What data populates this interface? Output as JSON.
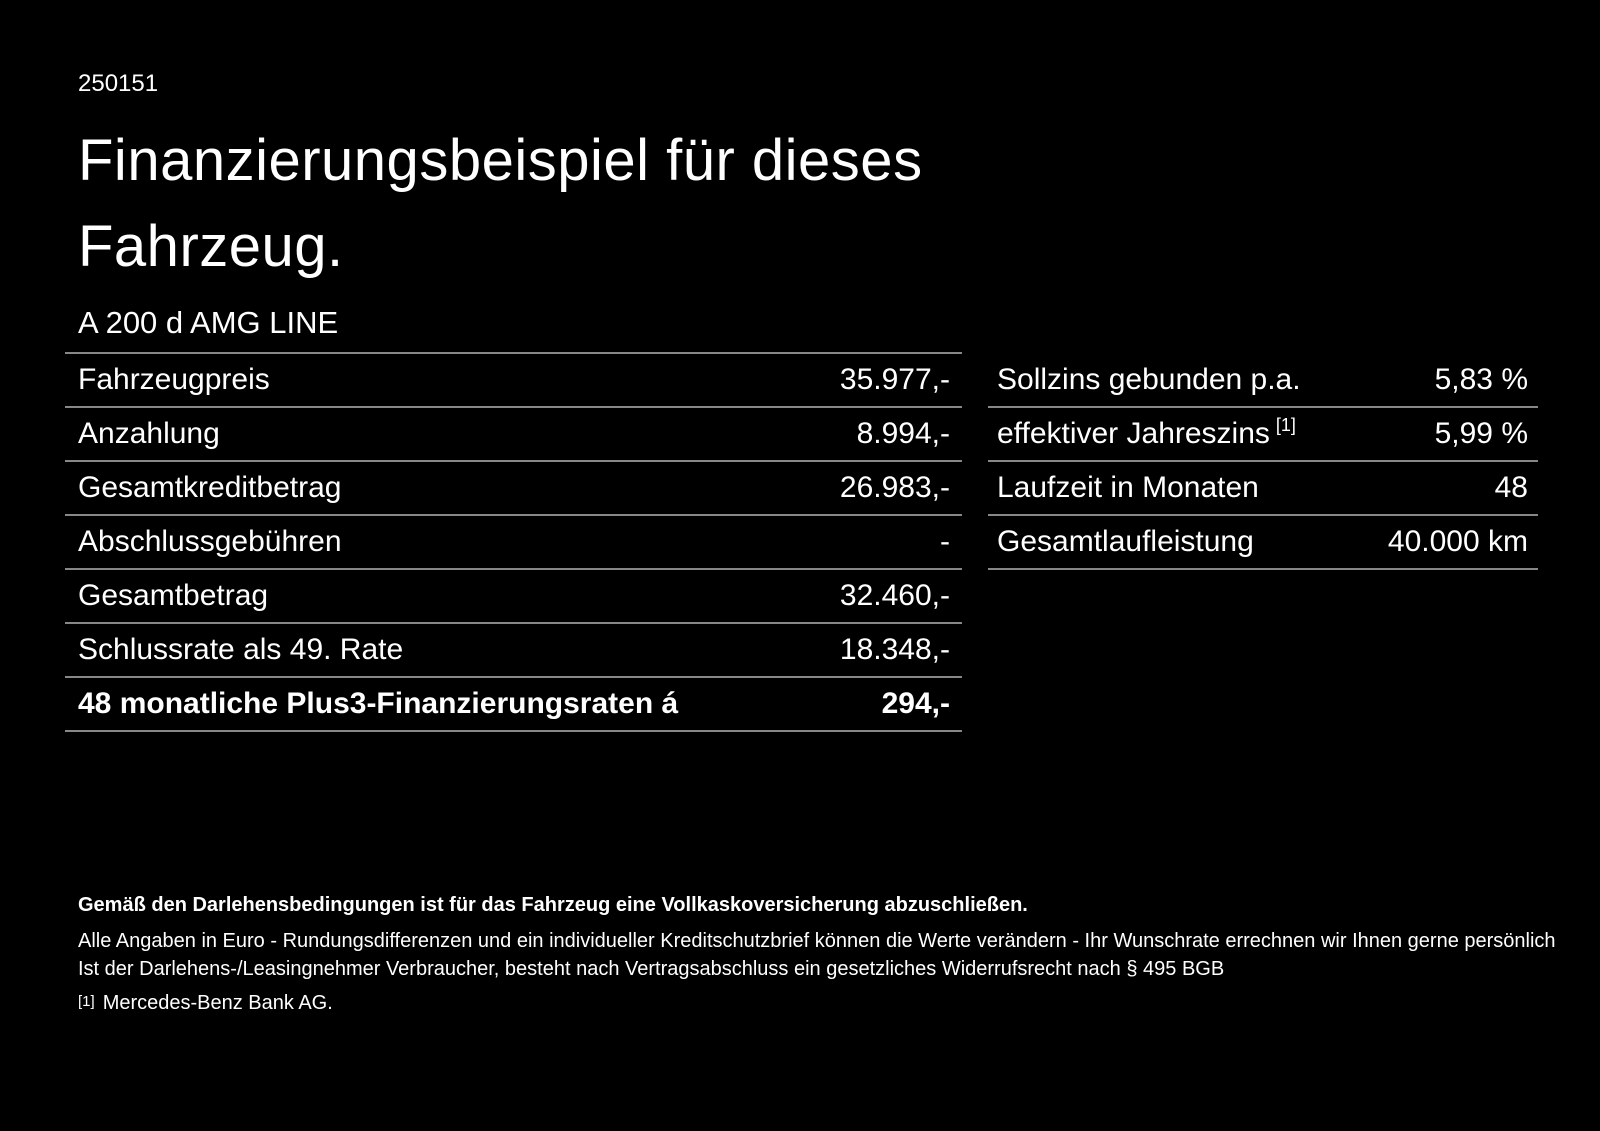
{
  "page": {
    "doc_number": "250151",
    "title_line1": "Finanzierungsbeispiel für dieses",
    "title_line2": "Fahrzeug.",
    "model": "A 200 d AMG LINE"
  },
  "finance_table": {
    "rows": [
      {
        "label": "Fahrzeugpreis",
        "value": "35.977,-"
      },
      {
        "label": "Anzahlung",
        "value": "8.994,-"
      },
      {
        "label": "Gesamtkreditbetrag",
        "value": "26.983,-"
      },
      {
        "label": "Abschlussgebühren",
        "value": "-"
      },
      {
        "label": "Gesamtbetrag",
        "value": "32.460,-"
      },
      {
        "label": "Schlussrate als 49. Rate",
        "value": "18.348,-"
      }
    ],
    "highlight_row": {
      "label": "48 monatliche Plus3-Finanzierungsraten á",
      "value": "294,-"
    }
  },
  "terms_table": {
    "rows": [
      {
        "label": "Sollzins gebunden p.a.",
        "sup": "",
        "value": "5,83 %"
      },
      {
        "label": "effektiver Jahreszins",
        "sup": "[1]",
        "value": "5,99 %"
      },
      {
        "label": "Laufzeit in Monaten",
        "sup": "",
        "value": "48"
      },
      {
        "label": "Gesamtlaufleistung",
        "sup": "",
        "value": "40.000 km"
      }
    ]
  },
  "footer": {
    "bold_note": "Gemäß den Darlehensbedingungen ist für das Fahrzeug eine Vollkaskoversicherung abzuschließen.",
    "note_line1": "Alle Angaben in Euro - Rundungsdifferenzen und ein individueller Kreditschutzbrief können die Werte verändern - Ihr Wunschrate errechnen wir Ihnen gerne persönlich",
    "note_line2": "Ist der Darlehens-/Leasingnehmer Verbraucher, besteht nach Vertragsabschluss ein gesetzliches Widerrufsrecht nach § 495 BGB",
    "footnote_marker": "[1]",
    "footnote_text": "Mercedes-Benz Bank AG."
  },
  "colors": {
    "background": "#000000",
    "text": "#ffffff",
    "rule": "#878787"
  }
}
